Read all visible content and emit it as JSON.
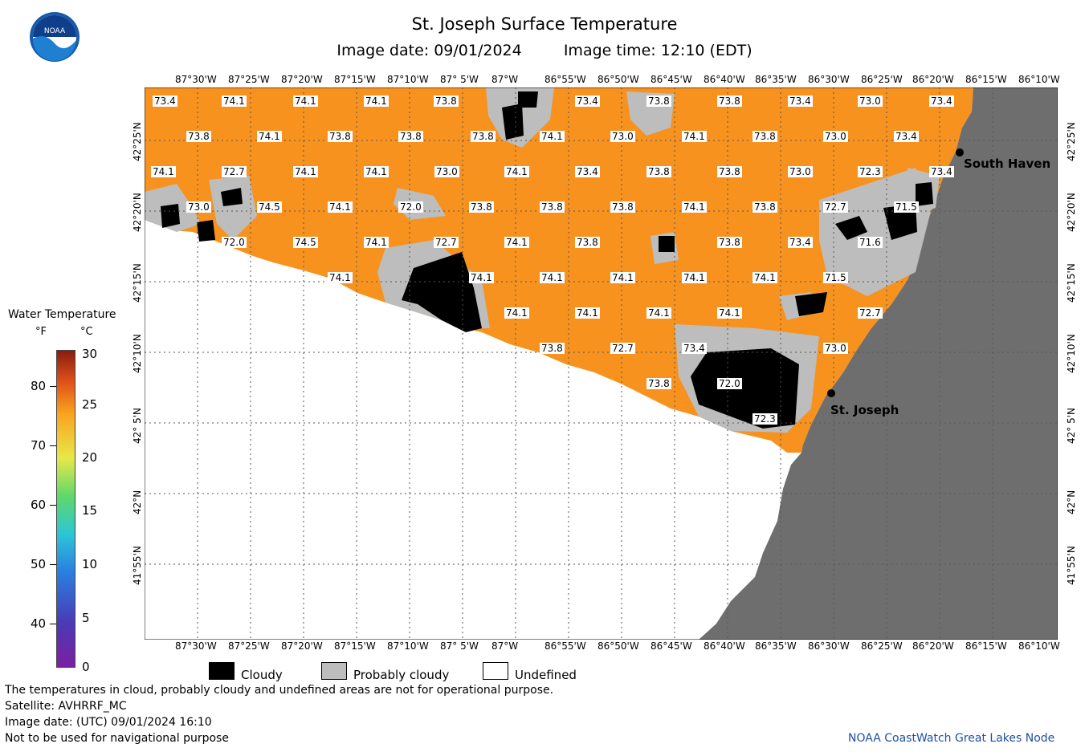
{
  "header": {
    "title": "St. Joseph Surface Temperature",
    "image_date_label": "Image date: 09/01/2024",
    "image_time_label": "Image time: 12:10 (EDT)"
  },
  "logo": {
    "text": "NOAA"
  },
  "colorbar": {
    "title": "Water Temperature",
    "unit_f": "°F",
    "unit_c": "°C",
    "f_ticks": [
      "80",
      "70",
      "60",
      "50",
      "40"
    ],
    "c_ticks": [
      "30",
      "25",
      "20",
      "15",
      "10",
      "5",
      "0"
    ]
  },
  "map": {
    "lon_ticks": [
      "87°30'W",
      "87°25'W",
      "87°20'W",
      "87°15'W",
      "87°10'W",
      "87° 5'W",
      "87°W",
      "86°55'W",
      "86°50'W",
      "86°45'W",
      "86°40'W",
      "86°35'W",
      "86°30'W",
      "86°25'W",
      "86°20'W",
      "86°15'W",
      "86°10'W"
    ],
    "lat_ticks": [
      "42°25'N",
      "42°20'N",
      "42°15'N",
      "42°10'N",
      "42° 5'N",
      "42°N",
      "41°55'N"
    ],
    "places": [
      {
        "name": "South Haven"
      },
      {
        "name": "St. Joseph"
      }
    ],
    "temps": [
      "73.4",
      "74.1",
      "74.1",
      "74.1",
      "73.8",
      "73.4",
      "73.8",
      "73.8",
      "73.4",
      "73.0",
      "73.4",
      "73.8",
      "74.1",
      "73.8",
      "73.8",
      "73.8",
      "74.1",
      "73.0",
      "74.1",
      "73.8",
      "73.0",
      "73.4",
      "74.1",
      "72.7",
      "74.1",
      "74.1",
      "73.0",
      "74.1",
      "73.4",
      "73.8",
      "73.8",
      "73.0",
      "72.3",
      "73.4",
      "73.0",
      "74.5",
      "74.1",
      "72.0",
      "73.8",
      "73.8",
      "73.8",
      "74.1",
      "73.8",
      "72.7",
      "71.5",
      "72.0",
      "74.5",
      "74.1",
      "72.7",
      "74.1",
      "73.8",
      "73.8",
      "73.4",
      "71.6",
      "74.1",
      "74.1",
      "74.1",
      "74.1",
      "74.1",
      "74.1",
      "71.5",
      "74.1",
      "74.1",
      "74.1",
      "74.1",
      "72.7",
      "73.8",
      "72.7",
      "73.4",
      "73.0",
      "73.8",
      "72.0",
      "72.3"
    ]
  },
  "legend": {
    "cloudy": "Cloudy",
    "probably_cloudy": "Probably cloudy",
    "undefined": "Undefined"
  },
  "footer": {
    "note": "The temperatures in cloud, probably cloudy and undefined areas are not for operational purpose.",
    "satellite": "Satellite: AVHRRF_MC",
    "utc_date": "Image date: (UTC) 09/01/2024  16:10",
    "nav_warning": "Not to be used for navigational purpose",
    "credit": "NOAA CoastWatch Great Lakes Node"
  },
  "colors": {
    "water": "#f7921e",
    "land": "#6e6e6e",
    "cloudy": "#000000",
    "probably_cloudy": "#bdbdbd",
    "undefined": "#ffffff"
  }
}
